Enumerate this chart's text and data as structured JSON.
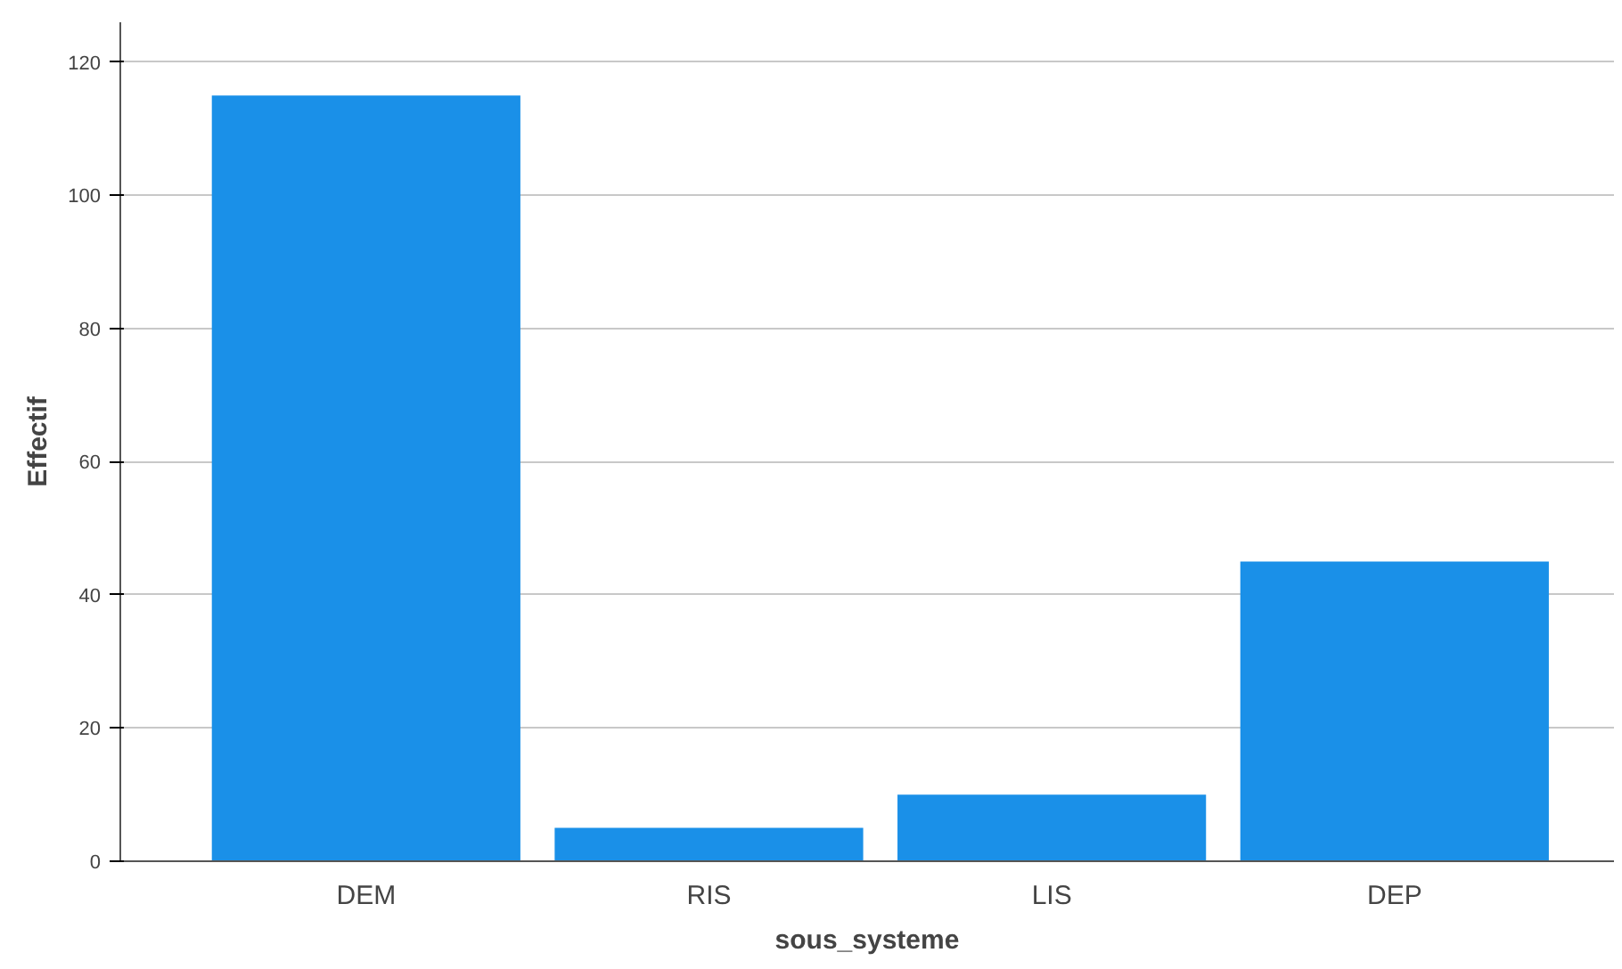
{
  "chart_data": {
    "type": "bar",
    "xlabel": "sous_systeme",
    "ylabel": "Effectif",
    "categories": [
      "DEM",
      "RIS",
      "LIS",
      "DEP"
    ],
    "values": [
      115,
      5,
      10,
      45
    ],
    "color": "#1a90e8",
    "ylim": [
      0,
      126
    ],
    "yticks": [
      0,
      20,
      40,
      60,
      80,
      100,
      120
    ],
    "grid": "y"
  }
}
